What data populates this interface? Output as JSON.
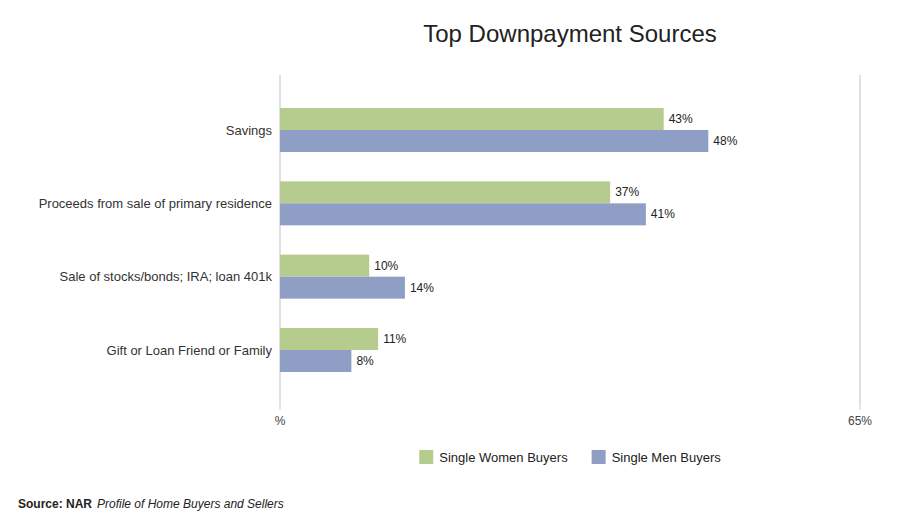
{
  "chart_data": {
    "type": "bar",
    "orientation": "horizontal",
    "title": "Top Downpayment Sources",
    "categories": [
      "Gift or Loan Friend or Family",
      "Sale of stocks/bonds; IRA; loan 401k",
      "Proceeds from sale of primary residence",
      "Savings"
    ],
    "series": [
      {
        "name": "Single Women Buyers",
        "color": "#b5cc8e",
        "values": [
          11,
          10,
          37,
          43
        ],
        "value_labels": [
          "11%",
          "10%",
          "37%",
          "43%"
        ]
      },
      {
        "name": "Single Men Buyers",
        "color": "#8e9ec4",
        "values": [
          8,
          14,
          41,
          48
        ],
        "value_labels": [
          "8%",
          "14%",
          "41%",
          "48%"
        ]
      }
    ],
    "xlim": [
      0,
      65
    ],
    "xticks": [
      {
        "value": 0,
        "label": "%"
      },
      {
        "value": 65,
        "label": "65%"
      }
    ],
    "data_labels": true,
    "grid": false,
    "legend": "bottom",
    "annotations": [
      {
        "text": "Source: NAR"
      },
      {
        "text": "Profile of Home Buyers and Sellers"
      }
    ]
  }
}
